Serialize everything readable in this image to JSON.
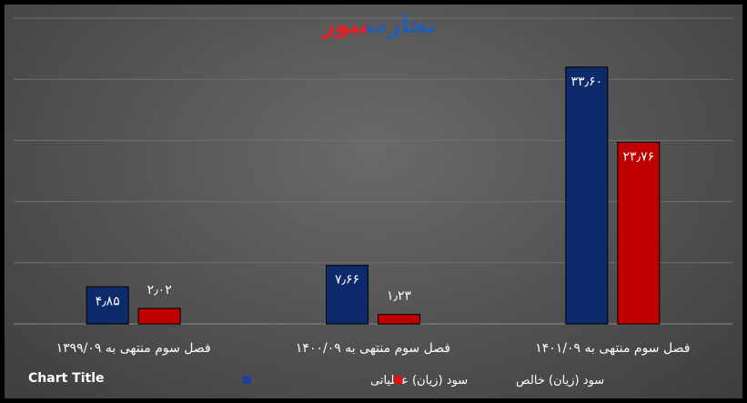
{
  "logo": {
    "part1": "تجارت",
    "part2": "نیوز",
    "color1": "#1f5fb3",
    "color2": "#e0202a"
  },
  "chart_data": {
    "type": "bar",
    "title": "Chart Title",
    "categories": [
      "فصل سوم منتهی به ۱۴۰۱/۰۹",
      "فصل سوم منتهی به ۱۴۰۰/۰۹",
      "فصل سوم منتهی به ۱۳۹۹/۰۹"
    ],
    "series": [
      {
        "name": "سود (زیان) عملیاتی",
        "color": "#0d2a6b",
        "values": [
          33.6,
          7.66,
          4.85
        ],
        "labels": [
          "۳۳٫۶۰",
          "۷٫۶۶",
          "۴٫۸۵"
        ]
      },
      {
        "name": "سود (زیان) خالص",
        "color": "#c00000",
        "values": [
          23.76,
          1.23,
          2.02
        ],
        "labels": [
          "۲۳٫۷۶",
          "۱٫۲۳",
          "۲٫۰۲"
        ]
      }
    ],
    "ylim": [
      0,
      40
    ],
    "grid": true,
    "legend": "bottom"
  }
}
